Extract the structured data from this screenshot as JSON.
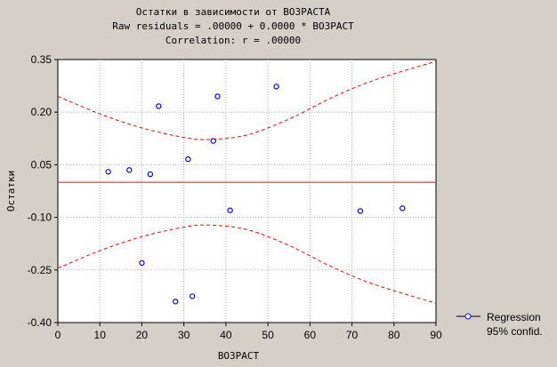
{
  "chart_data": {
    "type": "scatter",
    "title_lines": [
      "Остатки в зависимости от ВОЗРАСТА",
      "Raw residuals = .00000 + 0.0000 * ВОЗРАСТ",
      "Correlation: r = .00000"
    ],
    "xlabel": "ВОЗРАСТ",
    "ylabel": "Остатки",
    "xlim": [
      0,
      90
    ],
    "ylim": [
      -0.4,
      0.35
    ],
    "xticks": [
      0,
      10,
      20,
      30,
      40,
      50,
      60,
      70,
      80,
      90
    ],
    "yticks": [
      0.35,
      0.2,
      0.05,
      -0.1,
      -0.25,
      -0.4
    ],
    "ytick_labels": [
      "0.35",
      "0.20",
      "0.05",
      "-0.10",
      "-0.25",
      "-0.40"
    ],
    "grid": true,
    "points": [
      {
        "x": 12,
        "y": 0.03
      },
      {
        "x": 17,
        "y": 0.035
      },
      {
        "x": 20,
        "y": -0.23
      },
      {
        "x": 22,
        "y": 0.023
      },
      {
        "x": 24,
        "y": 0.217
      },
      {
        "x": 28,
        "y": -0.34
      },
      {
        "x": 31,
        "y": 0.066
      },
      {
        "x": 32,
        "y": -0.325
      },
      {
        "x": 37,
        "y": 0.118
      },
      {
        "x": 38,
        "y": 0.245
      },
      {
        "x": 41,
        "y": -0.08
      },
      {
        "x": 52,
        "y": 0.273
      },
      {
        "x": 72,
        "y": -0.082
      },
      {
        "x": 82,
        "y": -0.074
      }
    ],
    "regression_line": [
      {
        "x": 0,
        "y": 0.0
      },
      {
        "x": 90,
        "y": 0.0
      }
    ],
    "conf_upper": [
      {
        "x": 0,
        "y": 0.245
      },
      {
        "x": 10,
        "y": 0.195
      },
      {
        "x": 20,
        "y": 0.155
      },
      {
        "x": 30,
        "y": 0.128
      },
      {
        "x": 36,
        "y": 0.122
      },
      {
        "x": 45,
        "y": 0.135
      },
      {
        "x": 55,
        "y": 0.18
      },
      {
        "x": 65,
        "y": 0.24
      },
      {
        "x": 75,
        "y": 0.29
      },
      {
        "x": 90,
        "y": 0.345
      }
    ],
    "conf_lower": [
      {
        "x": 0,
        "y": -0.245
      },
      {
        "x": 10,
        "y": -0.195
      },
      {
        "x": 20,
        "y": -0.155
      },
      {
        "x": 30,
        "y": -0.128
      },
      {
        "x": 36,
        "y": -0.122
      },
      {
        "x": 45,
        "y": -0.135
      },
      {
        "x": 55,
        "y": -0.18
      },
      {
        "x": 65,
        "y": -0.24
      },
      {
        "x": 75,
        "y": -0.29
      },
      {
        "x": 90,
        "y": -0.345
      }
    ],
    "legend": {
      "placement": "bottom-right",
      "entries": [
        "Regression",
        "95% confid."
      ]
    },
    "colors": {
      "background": "#d4d0c8",
      "plot_area": "#ffffff",
      "points": "#0000ff",
      "regression": "#ff0000",
      "confidence": "#ff0000",
      "grid": "#b0b0b0"
    }
  }
}
